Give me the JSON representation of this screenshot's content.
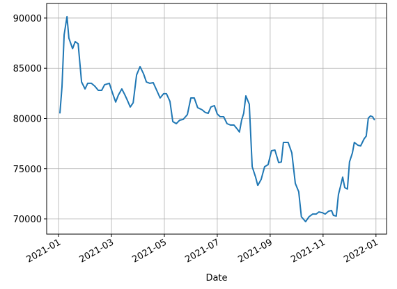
{
  "chart_data": {
    "type": "line",
    "xlabel": "Date",
    "color": "#1f77b4",
    "grid": true,
    "x": [
      0.05,
      0.13,
      0.21,
      0.32,
      0.39,
      0.53,
      0.63,
      0.74,
      0.87,
      1.0,
      1.1,
      1.24,
      1.37,
      1.5,
      1.63,
      1.74,
      1.92,
      2.03,
      2.16,
      2.26,
      2.39,
      2.5,
      2.61,
      2.71,
      2.82,
      2.95,
      3.08,
      3.21,
      3.32,
      3.45,
      3.58,
      3.71,
      3.84,
      3.97,
      4.08,
      4.21,
      4.32,
      4.45,
      4.58,
      4.71,
      4.87,
      5.0,
      5.13,
      5.26,
      5.42,
      5.55,
      5.66,
      5.76,
      5.89,
      6.0,
      6.11,
      6.24,
      6.37,
      6.5,
      6.63,
      6.76,
      6.84,
      6.92,
      7.0,
      7.08,
      7.21,
      7.32,
      7.45,
      7.53,
      7.66,
      7.79,
      7.92,
      8.05,
      8.18,
      8.32,
      8.42,
      8.5,
      8.68,
      8.82,
      8.95,
      9.08,
      9.18,
      9.34,
      9.47,
      9.61,
      9.74,
      9.84,
      9.97,
      10.08,
      10.21,
      10.32,
      10.39,
      10.5,
      10.58,
      10.66,
      10.74,
      10.82,
      10.92,
      11.0,
      11.11,
      11.18,
      11.32,
      11.42,
      11.55,
      11.63,
      11.71,
      11.79,
      11.87,
      11.95
    ],
    "values": [
      80500,
      83150,
      88340,
      90140,
      88000,
      86950,
      87650,
      87440,
      83630,
      82940,
      83500,
      83500,
      83220,
      82800,
      82800,
      83360,
      83500,
      82600,
      81630,
      82320,
      82940,
      82390,
      81760,
      81140,
      81560,
      84330,
      85160,
      84460,
      83630,
      83500,
      83560,
      82800,
      82040,
      82460,
      82460,
      81700,
      79690,
      79480,
      79830,
      79900,
      80380,
      82040,
      82040,
      81070,
      80870,
      80590,
      80520,
      81140,
      81280,
      80450,
      80170,
      80170,
      79480,
      79340,
      79340,
      78930,
      78650,
      79830,
      80520,
      82250,
      81420,
      75190,
      74150,
      73320,
      73940,
      75190,
      75400,
      76780,
      76850,
      75600,
      75670,
      77610,
      77610,
      76570,
      73530,
      72700,
      70210,
      69720,
      70210,
      70480,
      70480,
      70690,
      70620,
      70480,
      70760,
      70830,
      70350,
      70280,
      72420,
      73250,
      74150,
      73110,
      72980,
      75670,
      76570,
      77610,
      77330,
      77270,
      77960,
      78240,
      80030,
      80240,
      80170,
      79830
    ],
    "xlim": [
      -0.45,
      12.4
    ],
    "xticks": [
      {
        "value": 0,
        "label": "2021-01"
      },
      {
        "value": 2,
        "label": "2021-03"
      },
      {
        "value": 4,
        "label": "2021-05"
      },
      {
        "value": 6,
        "label": "2021-07"
      },
      {
        "value": 8,
        "label": "2021-09"
      },
      {
        "value": 10,
        "label": "2021-11"
      },
      {
        "value": 12,
        "label": "2022-01"
      }
    ],
    "ylim": [
      68480,
      91450
    ],
    "yticks": [
      70000,
      75000,
      80000,
      85000,
      90000
    ]
  }
}
